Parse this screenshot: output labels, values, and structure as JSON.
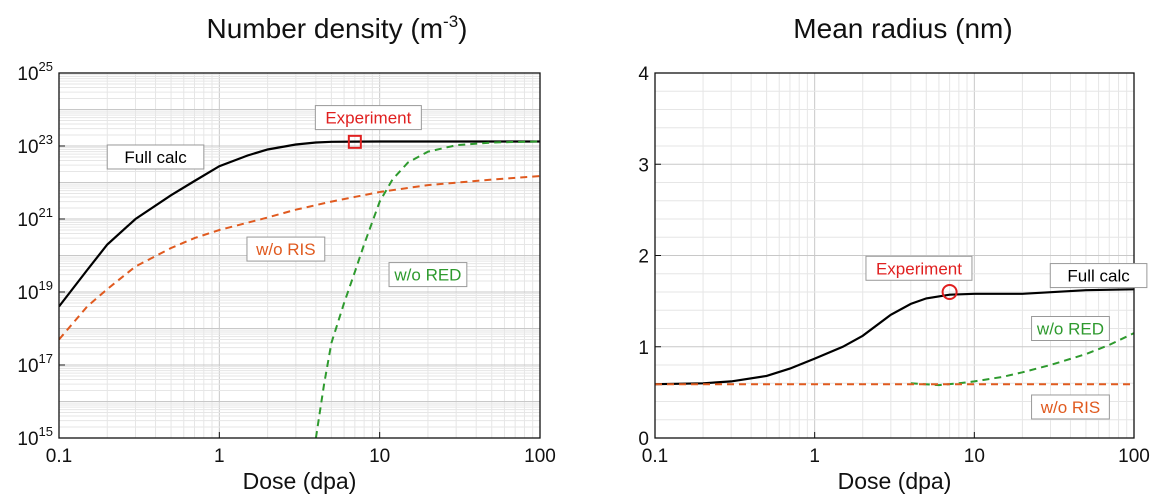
{
  "chart_data": [
    {
      "type": "line",
      "title": "Number density (m",
      "title_exponent": "-3",
      "title_suffix": ")",
      "xlabel": "Dose (dpa)",
      "ylabel": "",
      "xscale": "log",
      "yscale": "log",
      "xlim": [
        0.1,
        100
      ],
      "ylim": [
        1000000000000000.0,
        1e+25
      ],
      "x_ticks": [
        {
          "label": "0.1",
          "value": 0.1
        },
        {
          "label": "1",
          "value": 1
        },
        {
          "label": "10",
          "value": 10
        },
        {
          "label": "100",
          "value": 100
        }
      ],
      "y_ticks": [
        {
          "base": "10",
          "exp": "15",
          "value": 15
        },
        {
          "base": "10",
          "exp": "17",
          "value": 17
        },
        {
          "base": "10",
          "exp": "19",
          "value": 19
        },
        {
          "base": "10",
          "exp": "21",
          "value": 21
        },
        {
          "base": "10",
          "exp": "23",
          "value": 23
        },
        {
          "base": "10",
          "exp": "25",
          "value": 25
        }
      ],
      "grid": true,
      "series": [
        {
          "name": "Full calc",
          "color": "#000000",
          "dash": "solid",
          "x": [
            0.1,
            0.15,
            0.2,
            0.3,
            0.5,
            0.7,
            1,
            1.5,
            2,
            3,
            4,
            5,
            7,
            10,
            20,
            50,
            100
          ],
          "y": [
            4e+18,
            4e+19,
            2e+20,
            1e+21,
            4.5e+21,
            1.1e+22,
            2.8e+22,
            5.5e+22,
            8e+22,
            1.1e+23,
            1.25e+23,
            1.3e+23,
            1.32e+23,
            1.33e+23,
            1.33e+23,
            1.33e+23,
            1.33e+23
          ]
        },
        {
          "name": "w/o RIS",
          "color": "#e05a1f",
          "dash": "dashed",
          "x": [
            0.1,
            0.15,
            0.2,
            0.3,
            0.5,
            0.7,
            1,
            2,
            3,
            5,
            10,
            20,
            50,
            100
          ],
          "y": [
            5e+17,
            4e+18,
            1.2e+19,
            5e+19,
            1.6e+20,
            3e+20,
            5e+20,
            1.1e+21,
            1.8e+21,
            3e+21,
            5.5e+21,
            8.5e+21,
            1.2e+22,
            1.5e+22
          ]
        },
        {
          "name": "w/o RED",
          "color": "#2e9a2e",
          "dash": "dashed",
          "x": [
            4,
            4.5,
            5,
            6,
            7,
            8,
            10,
            12,
            15,
            20,
            30,
            50,
            100
          ],
          "y": [
            1000000000000000.0,
            3e+16,
            4e+17,
            5e+18,
            3.5e+19,
            2e+20,
            3e+21,
            1.2e+22,
            3.5e+22,
            7e+22,
            1.05e+23,
            1.25e+23,
            1.33e+23
          ]
        }
      ],
      "experiment": {
        "label": "Experiment",
        "x": 7,
        "y": 1.3e+23,
        "marker": "square",
        "color": "#e02020"
      },
      "annotations": [
        {
          "text": "Full calc",
          "color": "#000000",
          "x": 0.4,
          "y": 5e+22
        },
        {
          "text": "w/o RIS",
          "color": "#e05a1f",
          "x": 2.6,
          "y": 1.5e+20
        },
        {
          "text": "w/o RED",
          "color": "#2e9a2e",
          "x": 20,
          "y": 3e+19
        },
        {
          "text": "Experiment",
          "color": "#e02020",
          "x": 8.5,
          "y": 6e+23
        }
      ]
    },
    {
      "type": "line",
      "title": "Mean radius (nm)",
      "xlabel": "Dose (dpa)",
      "ylabel": "",
      "xscale": "log",
      "yscale": "linear",
      "xlim": [
        0.1,
        100
      ],
      "ylim": [
        0,
        4
      ],
      "x_ticks": [
        {
          "label": "0.1",
          "value": 0.1
        },
        {
          "label": "1",
          "value": 1
        },
        {
          "label": "10",
          "value": 10
        },
        {
          "label": "100",
          "value": 100
        }
      ],
      "y_ticks": [
        {
          "label": "0",
          "value": 0
        },
        {
          "label": "1",
          "value": 1
        },
        {
          "label": "2",
          "value": 2
        },
        {
          "label": "3",
          "value": 3
        },
        {
          "label": "4",
          "value": 4
        }
      ],
      "grid": true,
      "series": [
        {
          "name": "Full calc",
          "color": "#000000",
          "dash": "solid",
          "x": [
            0.1,
            0.2,
            0.3,
            0.5,
            0.7,
            1,
            1.5,
            2,
            3,
            4,
            5,
            7,
            10,
            20,
            50,
            100
          ],
          "y": [
            0.59,
            0.6,
            0.62,
            0.68,
            0.76,
            0.87,
            1.0,
            1.12,
            1.35,
            1.47,
            1.53,
            1.57,
            1.58,
            1.58,
            1.62,
            1.63
          ]
        },
        {
          "name": "w/o RED",
          "color": "#2e9a2e",
          "dash": "dashed",
          "x": [
            4,
            6,
            8,
            10,
            15,
            20,
            30,
            50,
            70,
            100
          ],
          "y": [
            0.6,
            0.58,
            0.6,
            0.62,
            0.67,
            0.72,
            0.8,
            0.92,
            1.02,
            1.15
          ]
        },
        {
          "name": "w/o RIS",
          "color": "#e05a1f",
          "dash": "dashed",
          "x": [
            0.1,
            1,
            10,
            100
          ],
          "y": [
            0.59,
            0.59,
            0.59,
            0.59
          ]
        }
      ],
      "experiment": {
        "label": "Experiment",
        "x": 7,
        "y": 1.6,
        "marker": "circle",
        "color": "#e02020"
      },
      "annotations": [
        {
          "text": "Experiment",
          "color": "#e02020",
          "x": 4.5,
          "y": 1.86
        },
        {
          "text": "Full calc",
          "color": "#000000",
          "x": 60,
          "y": 1.78
        },
        {
          "text": "w/o RED",
          "color": "#2e9a2e",
          "x": 40,
          "y": 1.2
        },
        {
          "text": "w/o RIS",
          "color": "#e05a1f",
          "x": 40,
          "y": 0.34
        }
      ]
    }
  ]
}
